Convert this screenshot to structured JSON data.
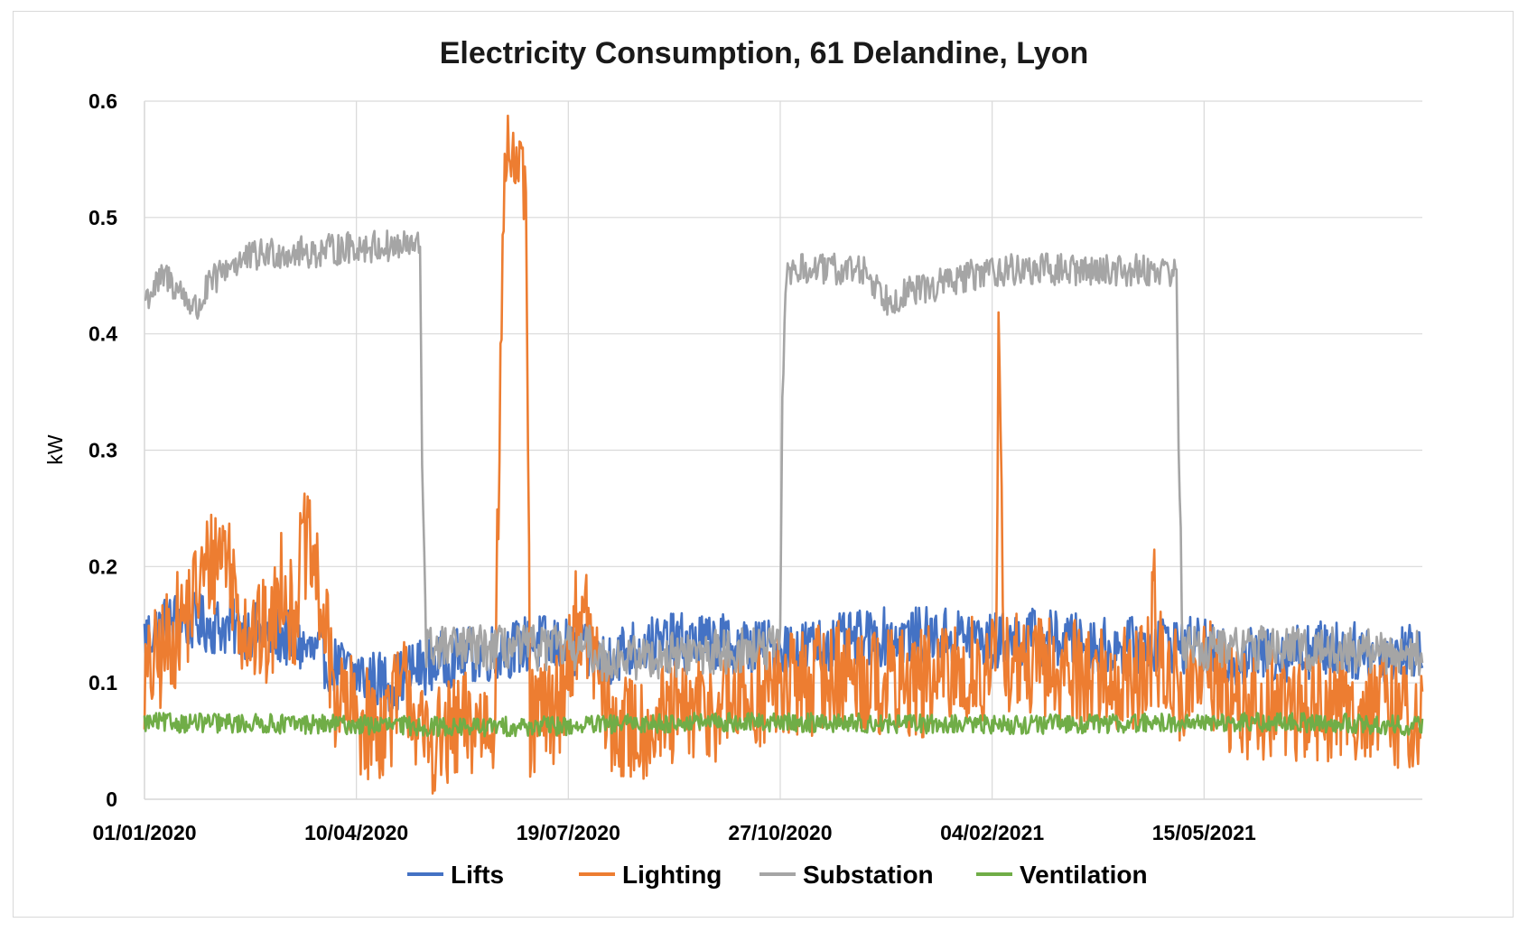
{
  "chart_data": {
    "type": "line",
    "title": "Electricity Consumption, 61 Delandine, Lyon",
    "xlabel": "",
    "ylabel": "kW",
    "ylim": [
      0,
      0.6
    ],
    "yticks": [
      "0",
      "0.1",
      "0.2",
      "0.3",
      "0.4",
      "0.5",
      "0.6"
    ],
    "ytick_values": [
      0,
      0.1,
      0.2,
      0.3,
      0.4,
      0.5,
      0.6
    ],
    "x_start": "01/01/2020",
    "x_end": "27/08/2021",
    "x_days": 604,
    "xticks": [
      "01/01/2020",
      "10/04/2020",
      "19/07/2020",
      "27/10/2020",
      "04/02/2021",
      "15/05/2021"
    ],
    "xtick_days": [
      0,
      100,
      200,
      300,
      400,
      500
    ],
    "grid": true,
    "legend_position": "bottom",
    "series": [
      {
        "name": "Lifts",
        "color": "#4472C4",
        "noise": 0.018,
        "x": [
          0,
          15,
          30,
          50,
          65,
          75,
          90,
          105,
          118,
          125,
          140,
          160,
          175,
          185,
          200,
          215,
          230,
          250,
          270,
          290,
          310,
          330,
          350,
          370,
          390,
          400,
          420,
          440,
          460,
          480,
          500,
          510,
          530,
          560,
          580,
          603
        ],
        "y": [
          0.14,
          0.155,
          0.15,
          0.145,
          0.14,
          0.13,
          0.115,
          0.105,
          0.1,
          0.11,
          0.12,
          0.125,
          0.13,
          0.135,
          0.13,
          0.12,
          0.13,
          0.135,
          0.135,
          0.13,
          0.13,
          0.135,
          0.14,
          0.14,
          0.14,
          0.135,
          0.14,
          0.135,
          0.13,
          0.135,
          0.13,
          0.12,
          0.125,
          0.13,
          0.125,
          0.13
        ]
      },
      {
        "name": "Lighting",
        "color": "#ED7D31",
        "noise": 0.035,
        "x": [
          0,
          10,
          20,
          30,
          38,
          45,
          52,
          60,
          65,
          70,
          75,
          80,
          90,
          100,
          110,
          118,
          125,
          130,
          140,
          150,
          165,
          170,
          172,
          180,
          182,
          185,
          195,
          205,
          210,
          220,
          230,
          250,
          270,
          290,
          310,
          330,
          350,
          370,
          390,
          402,
          403,
          406,
          420,
          440,
          460,
          475,
          476,
          478,
          490,
          500,
          510,
          520,
          540,
          560,
          580,
          603
        ],
        "y": [
          0.1,
          0.13,
          0.16,
          0.2,
          0.22,
          0.16,
          0.14,
          0.14,
          0.2,
          0.15,
          0.22,
          0.2,
          0.09,
          0.07,
          0.06,
          0.08,
          0.1,
          0.05,
          0.05,
          0.06,
          0.07,
          0.55,
          0.56,
          0.52,
          0.06,
          0.07,
          0.08,
          0.16,
          0.14,
          0.06,
          0.06,
          0.07,
          0.08,
          0.09,
          0.1,
          0.11,
          0.1,
          0.1,
          0.11,
          0.11,
          0.39,
          0.12,
          0.11,
          0.11,
          0.1,
          0.11,
          0.2,
          0.12,
          0.09,
          0.11,
          0.09,
          0.08,
          0.08,
          0.08,
          0.08,
          0.07
        ]
      },
      {
        "name": "Substation",
        "color": "#A5A5A5",
        "noise": 0.014,
        "x": [
          0,
          10,
          25,
          30,
          40,
          60,
          80,
          100,
          130,
          131,
          133,
          200,
          210,
          215,
          300,
          301,
          303,
          340,
          350,
          380,
          400,
          420,
          460,
          487,
          488,
          490,
          540,
          603
        ],
        "y": [
          0.43,
          0.45,
          0.42,
          0.44,
          0.46,
          0.47,
          0.47,
          0.475,
          0.475,
          0.3,
          0.13,
          0.13,
          0.13,
          0.12,
          0.13,
          0.35,
          0.455,
          0.455,
          0.43,
          0.445,
          0.455,
          0.455,
          0.455,
          0.455,
          0.3,
          0.13,
          0.13,
          0.125
        ]
      },
      {
        "name": "Ventilation",
        "color": "#70AD47",
        "noise": 0.006,
        "x": [
          0,
          50,
          100,
          150,
          200,
          250,
          300,
          350,
          400,
          450,
          500,
          550,
          603
        ],
        "y": [
          0.066,
          0.065,
          0.064,
          0.062,
          0.063,
          0.066,
          0.066,
          0.065,
          0.064,
          0.065,
          0.066,
          0.066,
          0.063
        ]
      }
    ]
  }
}
